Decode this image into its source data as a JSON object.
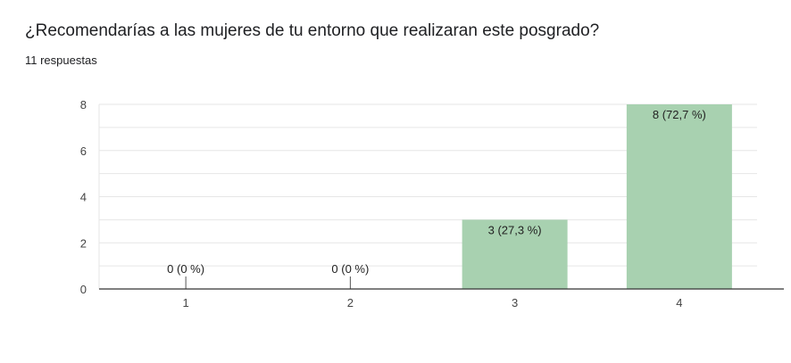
{
  "header": {
    "title": "¿Recomendarías a las mujeres de tu entorno que realizaran este posgrado?",
    "responses": "11 respuestas"
  },
  "colors": {
    "bar": "#a8d1b0",
    "grid": "#e6e6e6",
    "axis": "#333333"
  },
  "chart_data": {
    "type": "bar",
    "title": "",
    "xlabel": "",
    "ylabel": "",
    "categories": [
      "1",
      "2",
      "3",
      "4"
    ],
    "values": [
      0,
      0,
      3,
      8
    ],
    "data_labels": [
      "0 (0 %)",
      "0 (0 %)",
      "3 (27,3 %)",
      "8 (72,7 %)"
    ],
    "ylim": [
      0,
      8
    ],
    "yticks": [
      0,
      2,
      4,
      6,
      8
    ],
    "grid": true,
    "legend": "none"
  }
}
